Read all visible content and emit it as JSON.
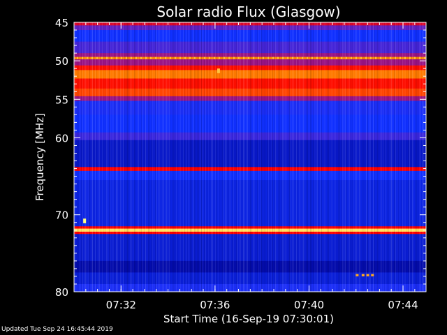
{
  "chart_data": {
    "type": "heatmap",
    "title": "Solar radio Flux (Glasgow)",
    "xlabel": "Start Time (16-Sep-19 07:30:01)",
    "ylabel": "Frequency [MHz]",
    "xlim": [
      "07:30:01",
      "07:45:00"
    ],
    "ylim": [
      80,
      45
    ],
    "x_ticks": [
      {
        "value": "07:32",
        "minutes_from_start": 2.0
      },
      {
        "value": "07:36",
        "minutes_from_start": 6.0
      },
      {
        "value": "07:40",
        "minutes_from_start": 10.0
      },
      {
        "value": "07:44",
        "minutes_from_start": 14.0
      }
    ],
    "y_ticks": [
      45,
      50,
      55,
      60,
      70,
      80
    ],
    "color_scale": [
      "#000090",
      "#1030ff",
      "#7a1ab0",
      "#ff0000",
      "#ff8800",
      "#ffff80"
    ],
    "bands": [
      {
        "f_low": 45.0,
        "f_high": 45.4,
        "level": 0.55
      },
      {
        "f_low": 45.4,
        "f_high": 46.0,
        "level": 0.35
      },
      {
        "f_low": 46.0,
        "f_high": 47.5,
        "level": 0.2
      },
      {
        "f_low": 47.5,
        "f_high": 49.0,
        "level": 0.3
      },
      {
        "f_low": 49.0,
        "f_high": 49.5,
        "level": 0.45
      },
      {
        "f_low": 49.5,
        "f_high": 49.8,
        "level": 0.8
      },
      {
        "f_low": 49.8,
        "f_high": 50.6,
        "level": 0.45
      },
      {
        "f_low": 50.6,
        "f_high": 51.2,
        "level": 0.62
      },
      {
        "f_low": 51.2,
        "f_high": 52.3,
        "level": 0.78
      },
      {
        "f_low": 52.3,
        "f_high": 53.6,
        "level": 0.62
      },
      {
        "f_low": 53.6,
        "f_high": 54.6,
        "level": 0.7
      },
      {
        "f_low": 54.6,
        "f_high": 55.2,
        "level": 0.45
      },
      {
        "f_low": 55.2,
        "f_high": 57.0,
        "level": 0.22
      },
      {
        "f_low": 57.0,
        "f_high": 59.3,
        "level": 0.2
      },
      {
        "f_low": 59.3,
        "f_high": 60.3,
        "level": 0.28
      },
      {
        "f_low": 60.3,
        "f_high": 63.8,
        "level": 0.1
      },
      {
        "f_low": 63.8,
        "f_high": 64.3,
        "level": 0.6
      },
      {
        "f_low": 64.3,
        "f_high": 65.5,
        "level": 0.2
      },
      {
        "f_low": 65.5,
        "f_high": 71.5,
        "level": 0.15
      },
      {
        "f_low": 71.5,
        "f_high": 71.8,
        "level": 0.6
      },
      {
        "f_low": 71.8,
        "f_high": 72.2,
        "level": 0.95
      },
      {
        "f_low": 72.2,
        "f_high": 72.5,
        "level": 0.6
      },
      {
        "f_low": 72.5,
        "f_high": 76.0,
        "level": 0.12
      },
      {
        "f_low": 76.0,
        "f_high": 77.5,
        "level": 0.05
      },
      {
        "f_low": 77.5,
        "f_high": 79.0,
        "level": 0.13
      },
      {
        "f_low": 79.0,
        "f_high": 80.0,
        "level": 0.22
      }
    ],
    "spots": [
      {
        "minutes": 6.15,
        "f_low": 51.0,
        "f_high": 51.6,
        "level": 0.9
      },
      {
        "minutes": 0.45,
        "f_low": 70.5,
        "f_high": 71.1,
        "level": 1.0
      },
      {
        "minutes": 12.05,
        "f_low": 77.7,
        "f_high": 78.0,
        "level": 0.85
      },
      {
        "minutes": 12.3,
        "f_low": 77.7,
        "f_high": 78.0,
        "level": 0.85
      },
      {
        "minutes": 12.5,
        "f_low": 77.7,
        "f_high": 78.0,
        "level": 0.85
      },
      {
        "minutes": 12.7,
        "f_low": 77.7,
        "f_high": 78.0,
        "level": 0.85
      }
    ]
  },
  "footer": "Updated Tue Sep 24 16:45:44 2019"
}
